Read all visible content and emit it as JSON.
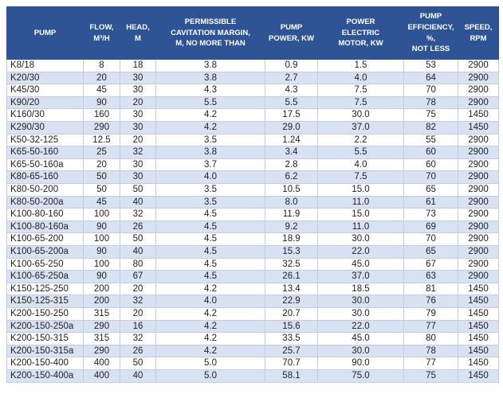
{
  "colors": {
    "header_bg": "#2e5496",
    "header_text": "#ffffff",
    "row_alt_bg": "#d9e2f3",
    "row_bg": "#ffffff",
    "border": "#c3cde0",
    "body_text": "#222222"
  },
  "table": {
    "columns": [
      {
        "label": "PUMP"
      },
      {
        "label": "FLOW,\nM³/H"
      },
      {
        "label": "HEAD,\nM"
      },
      {
        "label": "PERMISSIBLE\nCAVITATION MARGIN,\nM, NO MORE THAN"
      },
      {
        "label": "PUMP\nPOWER, KW"
      },
      {
        "label": "POWER\nELECTRIC\nMOTOR, KW"
      },
      {
        "label": "PUMP\nEFFICIENCY, %,\nNOT LESS"
      },
      {
        "label": "SPEED,\nRPM"
      }
    ],
    "rows": [
      [
        "K8/18",
        "8",
        "18",
        "3.8",
        "0.9",
        "1.5",
        "53",
        "2900"
      ],
      [
        "K20/30",
        "20",
        "30",
        "3.8",
        "2.7",
        "4.0",
        "64",
        "2900"
      ],
      [
        "K45/30",
        "45",
        "30",
        "4.3",
        "4.3",
        "7.5",
        "70",
        "2900"
      ],
      [
        "K90/20",
        "90",
        "20",
        "5.5",
        "5.5",
        "7.5",
        "78",
        "2900"
      ],
      [
        "K160/30",
        "160",
        "30",
        "4.2",
        "17.5",
        "30.0",
        "75",
        "1450"
      ],
      [
        "K290/30",
        "290",
        "30",
        "4.2",
        "29.0",
        "37.0",
        "82",
        "1450"
      ],
      [
        "K50-32-125",
        "12.5",
        "20",
        "3.5",
        "1.24",
        "2.2",
        "55",
        "2900"
      ],
      [
        "K65-50-160",
        "25",
        "32",
        "3.8",
        "3.4",
        "5.5",
        "60",
        "2900"
      ],
      [
        "K65-50-160a",
        "20",
        "30",
        "3.7",
        "2.8",
        "4.0",
        "60",
        "2900"
      ],
      [
        "K80-65-160",
        "50",
        "30",
        "4.0",
        "6.2",
        "7.5",
        "70",
        "2900"
      ],
      [
        "K80-50-200",
        "50",
        "50",
        "3.5",
        "10.5",
        "15.0",
        "65",
        "2900"
      ],
      [
        "K80-50-200a",
        "45",
        "40",
        "3.5",
        "8.0",
        "11.0",
        "61",
        "2900"
      ],
      [
        "K100-80-160",
        "100",
        "32",
        "4.5",
        "11.9",
        "15.0",
        "73",
        "2900"
      ],
      [
        "K100-80-160a",
        "90",
        "26",
        "4.5",
        "9.2",
        "11.0",
        "69",
        "2900"
      ],
      [
        "K100-65-200",
        "100",
        "50",
        "4.5",
        "18.9",
        "30.0",
        "70",
        "2900"
      ],
      [
        "K100-65-200a",
        "90",
        "40",
        "4.5",
        "15.3",
        "22.0",
        "65",
        "2900"
      ],
      [
        "K100-65-250",
        "100",
        "80",
        "4.5",
        "32.5",
        "45.0",
        "67",
        "2900"
      ],
      [
        "K100-65-250a",
        "90",
        "67",
        "4.5",
        "26.1",
        "37.0",
        "63",
        "2900"
      ],
      [
        "K150-125-250",
        "200",
        "20",
        "4.2",
        "13.4",
        "18.5",
        "81",
        "1450"
      ],
      [
        "K150-125-315",
        "200",
        "32",
        "4.0",
        "22.9",
        "30.0",
        "76",
        "1450"
      ],
      [
        "K200-150-250",
        "315",
        "20",
        "4.2",
        "20.7",
        "30.0",
        "79",
        "1450"
      ],
      [
        "K200-150-250a",
        "290",
        "16",
        "4.2",
        "15.6",
        "22.0",
        "77",
        "1450"
      ],
      [
        "K200-150-315",
        "315",
        "32",
        "4.2",
        "33.5",
        "45.0",
        "80",
        "1450"
      ],
      [
        "K200-150-315a",
        "290",
        "26",
        "4.2",
        "25.7",
        "30.0",
        "78",
        "1450"
      ],
      [
        "K200-150-400",
        "400",
        "50",
        "5.0",
        "70.7",
        "90.0",
        "77",
        "1450"
      ],
      [
        "K200-150-400a",
        "400",
        "40",
        "5.0",
        "58.1",
        "75.0",
        "75",
        "1450"
      ]
    ]
  }
}
